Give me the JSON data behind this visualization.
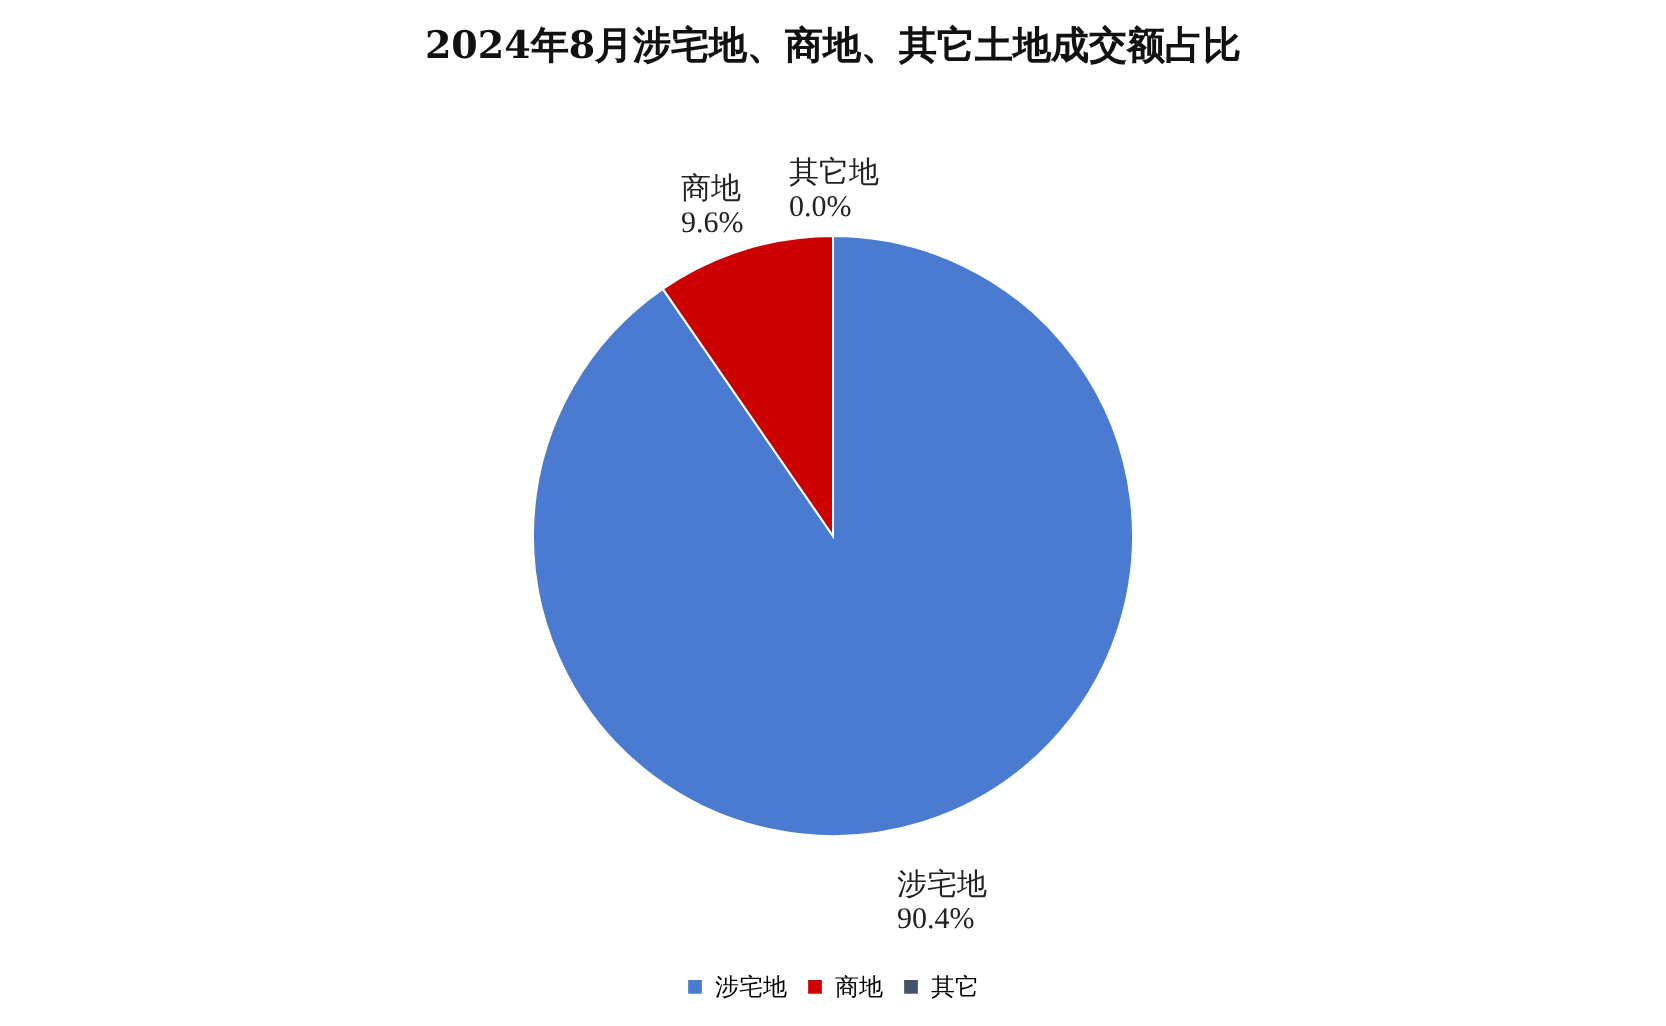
{
  "chart_data": {
    "type": "pie",
    "title": "2024年8月涉宅地、商地、其它土地成交额占比",
    "categories": [
      "涉宅地",
      "商地",
      "其它"
    ],
    "values": [
      90.4,
      9.6,
      0.0
    ],
    "colors": [
      "#4a7bd0",
      "#cc0000",
      "#44546a"
    ],
    "value_labels": [
      "涉宅地\n90.4%",
      "商地\n9.6%",
      "其它地\n0.0%"
    ],
    "legend": "bottom"
  }
}
